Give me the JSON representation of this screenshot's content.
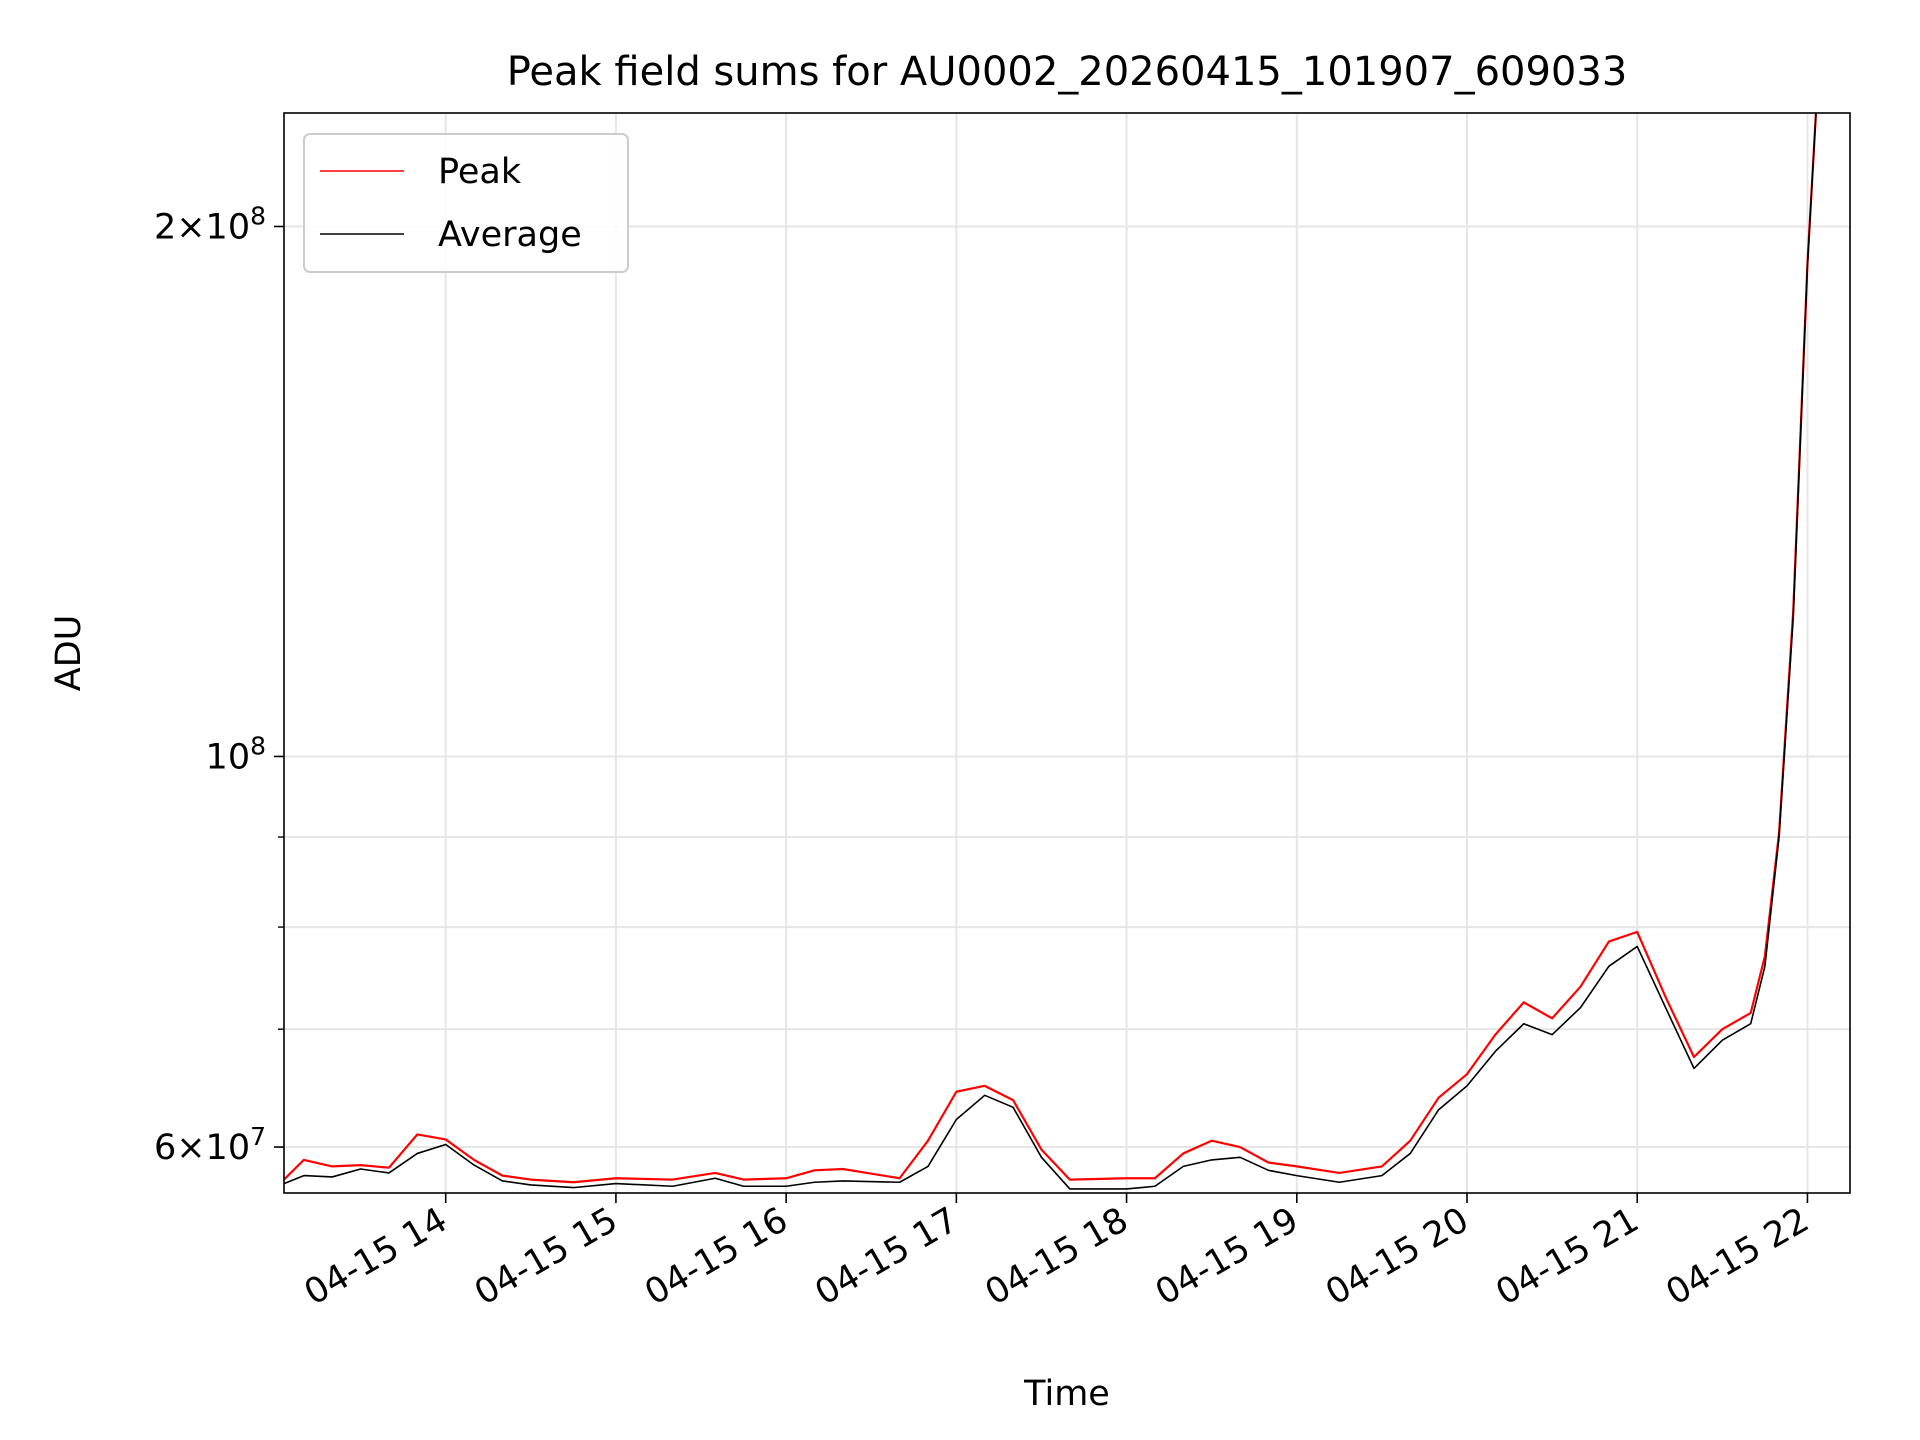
{
  "chart_data": {
    "type": "line",
    "title": "Peak field sums for AU0002_20260415_101907_609033",
    "xlabel": "Time",
    "ylabel": "ADU",
    "yscale": "log",
    "grid": true,
    "legend_placement": "top-left",
    "x_axis_type": "datetime",
    "xlim": [
      "2026-04-15 13:03",
      "2026-04-15 22:15"
    ],
    "ylim": [
      56500000,
      232000000
    ],
    "x_ticks": [
      {
        "value": "2026-04-15 14:00",
        "label": "04-15 14"
      },
      {
        "value": "2026-04-15 15:00",
        "label": "04-15 15"
      },
      {
        "value": "2026-04-15 16:00",
        "label": "04-15 16"
      },
      {
        "value": "2026-04-15 17:00",
        "label": "04-15 17"
      },
      {
        "value": "2026-04-15 18:00",
        "label": "04-15 18"
      },
      {
        "value": "2026-04-15 19:00",
        "label": "04-15 19"
      },
      {
        "value": "2026-04-15 20:00",
        "label": "04-15 20"
      },
      {
        "value": "2026-04-15 21:00",
        "label": "04-15 21"
      },
      {
        "value": "2026-04-15 22:00",
        "label": "04-15 22"
      }
    ],
    "y_major_ticks": [
      {
        "value": 60000000,
        "base": "6×10",
        "exp": "7"
      },
      {
        "value": 100000000,
        "base": "10",
        "exp": "8"
      },
      {
        "value": 200000000,
        "base": "2×10",
        "exp": "8"
      }
    ],
    "y_minor_ticks": [
      70000000,
      80000000,
      90000000
    ],
    "series": [
      {
        "name": "Average",
        "color": "#000000",
        "x": [
          "2026-04-15 13:03",
          "2026-04-15 13:10",
          "2026-04-15 13:20",
          "2026-04-15 13:30",
          "2026-04-15 13:40",
          "2026-04-15 13:50",
          "2026-04-15 14:00",
          "2026-04-15 14:10",
          "2026-04-15 14:20",
          "2026-04-15 14:30",
          "2026-04-15 14:45",
          "2026-04-15 15:00",
          "2026-04-15 15:20",
          "2026-04-15 15:35",
          "2026-04-15 15:45",
          "2026-04-15 16:00",
          "2026-04-15 16:10",
          "2026-04-15 16:20",
          "2026-04-15 16:40",
          "2026-04-15 16:50",
          "2026-04-15 17:00",
          "2026-04-15 17:10",
          "2026-04-15 17:20",
          "2026-04-15 17:30",
          "2026-04-15 17:40",
          "2026-04-15 18:00",
          "2026-04-15 18:10",
          "2026-04-15 18:20",
          "2026-04-15 18:30",
          "2026-04-15 18:40",
          "2026-04-15 18:50",
          "2026-04-15 19:00",
          "2026-04-15 19:15",
          "2026-04-15 19:30",
          "2026-04-15 19:40",
          "2026-04-15 19:50",
          "2026-04-15 20:00",
          "2026-04-15 20:10",
          "2026-04-15 20:20",
          "2026-04-15 20:30",
          "2026-04-15 20:40",
          "2026-04-15 20:50",
          "2026-04-15 21:00",
          "2026-04-15 21:10",
          "2026-04-15 21:20",
          "2026-04-15 21:30",
          "2026-04-15 21:40",
          "2026-04-15 21:45",
          "2026-04-15 21:50",
          "2026-04-15 21:55",
          "2026-04-15 22:00",
          "2026-04-15 22:03"
        ],
        "values": [
          57200000,
          57800000,
          57700000,
          58300000,
          58000000,
          59500000,
          60200000,
          58600000,
          57400000,
          57100000,
          56900000,
          57200000,
          57000000,
          57600000,
          57000000,
          57000000,
          57300000,
          57400000,
          57300000,
          58500000,
          62200000,
          64200000,
          63200000,
          59200000,
          56800000,
          56800000,
          57000000,
          58500000,
          59000000,
          59200000,
          58200000,
          57800000,
          57300000,
          57800000,
          59500000,
          63000000,
          65000000,
          68000000,
          70500000,
          69500000,
          72000000,
          76000000,
          78000000,
          72000000,
          66500000,
          69000000,
          70500000,
          76000000,
          90000000,
          120000000,
          190000000,
          232000000
        ]
      },
      {
        "name": "Peak",
        "color": "#ff0000",
        "x": [
          "2026-04-15 13:03",
          "2026-04-15 13:10",
          "2026-04-15 13:20",
          "2026-04-15 13:30",
          "2026-04-15 13:40",
          "2026-04-15 13:50",
          "2026-04-15 14:00",
          "2026-04-15 14:10",
          "2026-04-15 14:20",
          "2026-04-15 14:30",
          "2026-04-15 14:45",
          "2026-04-15 15:00",
          "2026-04-15 15:20",
          "2026-04-15 15:35",
          "2026-04-15 15:45",
          "2026-04-15 16:00",
          "2026-04-15 16:10",
          "2026-04-15 16:20",
          "2026-04-15 16:40",
          "2026-04-15 16:50",
          "2026-04-15 17:00",
          "2026-04-15 17:10",
          "2026-04-15 17:20",
          "2026-04-15 17:30",
          "2026-04-15 17:40",
          "2026-04-15 18:00",
          "2026-04-15 18:10",
          "2026-04-15 18:20",
          "2026-04-15 18:30",
          "2026-04-15 18:40",
          "2026-04-15 18:50",
          "2026-04-15 19:00",
          "2026-04-15 19:15",
          "2026-04-15 19:30",
          "2026-04-15 19:40",
          "2026-04-15 19:50",
          "2026-04-15 20:00",
          "2026-04-15 20:10",
          "2026-04-15 20:20",
          "2026-04-15 20:30",
          "2026-04-15 20:40",
          "2026-04-15 20:50",
          "2026-04-15 21:00",
          "2026-04-15 21:10",
          "2026-04-15 21:20",
          "2026-04-15 21:30",
          "2026-04-15 21:40",
          "2026-04-15 21:45",
          "2026-04-15 21:50",
          "2026-04-15 21:55",
          "2026-04-15 22:00",
          "2026-04-15 22:03"
        ],
        "values": [
          57500000,
          59000000,
          58500000,
          58600000,
          58400000,
          61000000,
          60600000,
          59000000,
          57800000,
          57500000,
          57300000,
          57600000,
          57500000,
          58000000,
          57500000,
          57600000,
          58200000,
          58300000,
          57600000,
          60500000,
          64500000,
          65000000,
          63800000,
          59800000,
          57500000,
          57600000,
          57600000,
          59500000,
          60500000,
          60000000,
          58800000,
          58500000,
          58000000,
          58500000,
          60500000,
          64000000,
          66000000,
          69500000,
          72500000,
          71000000,
          74000000,
          78500000,
          79500000,
          73000000,
          67500000,
          70000000,
          71500000,
          77000000,
          90500000,
          121000000,
          190500000,
          232000000
        ]
      }
    ]
  }
}
